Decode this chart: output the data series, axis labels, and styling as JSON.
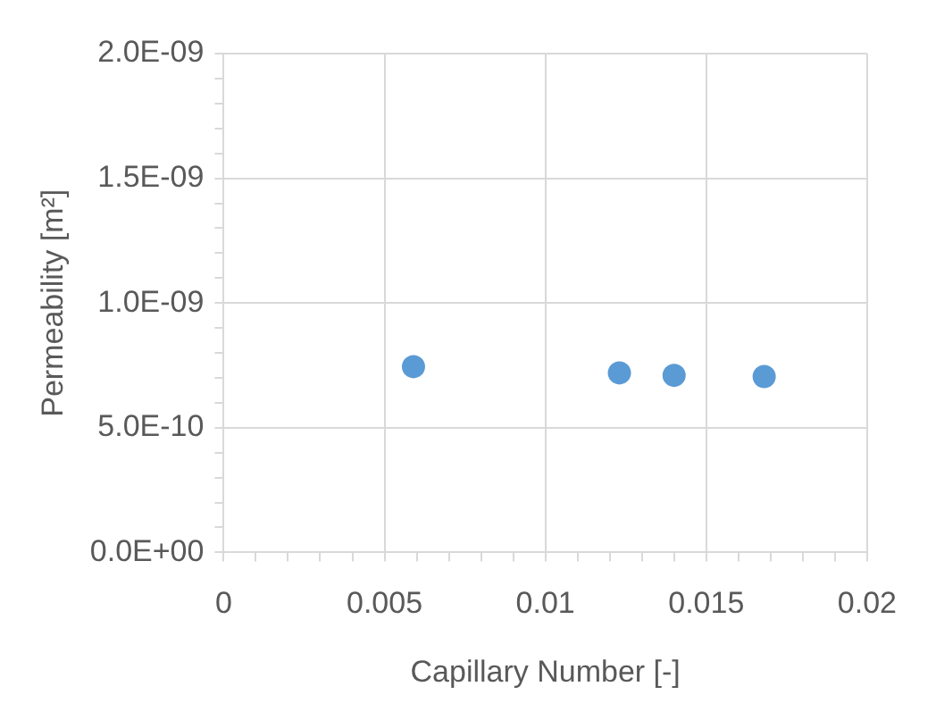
{
  "chart_data": {
    "type": "scatter",
    "xlabel": "Capillary Number [-]",
    "ylabel": "Permeability [m²]",
    "x": [
      0.0059,
      0.0123,
      0.014,
      0.0168
    ],
    "series": [
      {
        "color": "#5b9bd5",
        "values": [
          7.45e-10,
          7.2e-10,
          7.1e-10,
          7.05e-10
        ]
      }
    ],
    "xlim": [
      0,
      0.02
    ],
    "xticks": [
      0,
      {
        "value": 0.001,
        "label": null
      },
      {
        "value": 0.002,
        "label": null
      },
      {
        "value": 0.003,
        "label": null
      },
      {
        "value": 0.004,
        "label": null
      },
      0.005,
      {
        "value": 0.006,
        "label": null
      },
      {
        "value": 0.007,
        "label": null
      },
      {
        "value": 0.008,
        "label": null
      },
      {
        "value": 0.009,
        "label": null
      },
      0.01,
      {
        "value": 0.011,
        "label": null
      },
      {
        "value": 0.012,
        "label": null
      },
      {
        "value": 0.013,
        "label": null
      },
      {
        "value": 0.014,
        "label": null
      },
      0.015,
      {
        "value": 0.016,
        "label": null
      },
      {
        "value": 0.017,
        "label": null
      },
      {
        "value": 0.018,
        "label": null
      },
      {
        "value": 0.019,
        "label": null
      },
      0.02
    ],
    "ylim": [
      0,
      2e-09
    ],
    "yticks": [
      {
        "value": 0,
        "label": "0.0E+00"
      },
      {
        "value": 1e-10,
        "label": null
      },
      {
        "value": 2e-10,
        "label": null
      },
      {
        "value": 3e-10,
        "label": null
      },
      {
        "value": 4e-10,
        "label": null
      },
      {
        "value": 5e-10,
        "label": "5.0E-10"
      },
      {
        "value": 6e-10,
        "label": null
      },
      {
        "value": 7e-10,
        "label": null
      },
      {
        "value": 8e-10,
        "label": null
      },
      {
        "value": 9e-10,
        "label": null
      },
      {
        "value": 1e-09,
        "label": "1.0E-09"
      },
      {
        "value": 1.1e-09,
        "label": null
      },
      {
        "value": 1.2e-09,
        "label": null
      },
      {
        "value": 1.3e-09,
        "label": null
      },
      {
        "value": 1.4e-09,
        "label": null
      },
      {
        "value": 1.5e-09,
        "label": "1.5E-09"
      },
      {
        "value": 1.6e-09,
        "label": null
      },
      {
        "value": 1.7e-09,
        "label": null
      },
      {
        "value": 1.8e-09,
        "label": null
      },
      {
        "value": 1.9e-09,
        "label": null
      },
      {
        "value": 2e-09,
        "label": "2.0E-09"
      }
    ],
    "grid": true,
    "marker": "circle",
    "legend": false
  }
}
